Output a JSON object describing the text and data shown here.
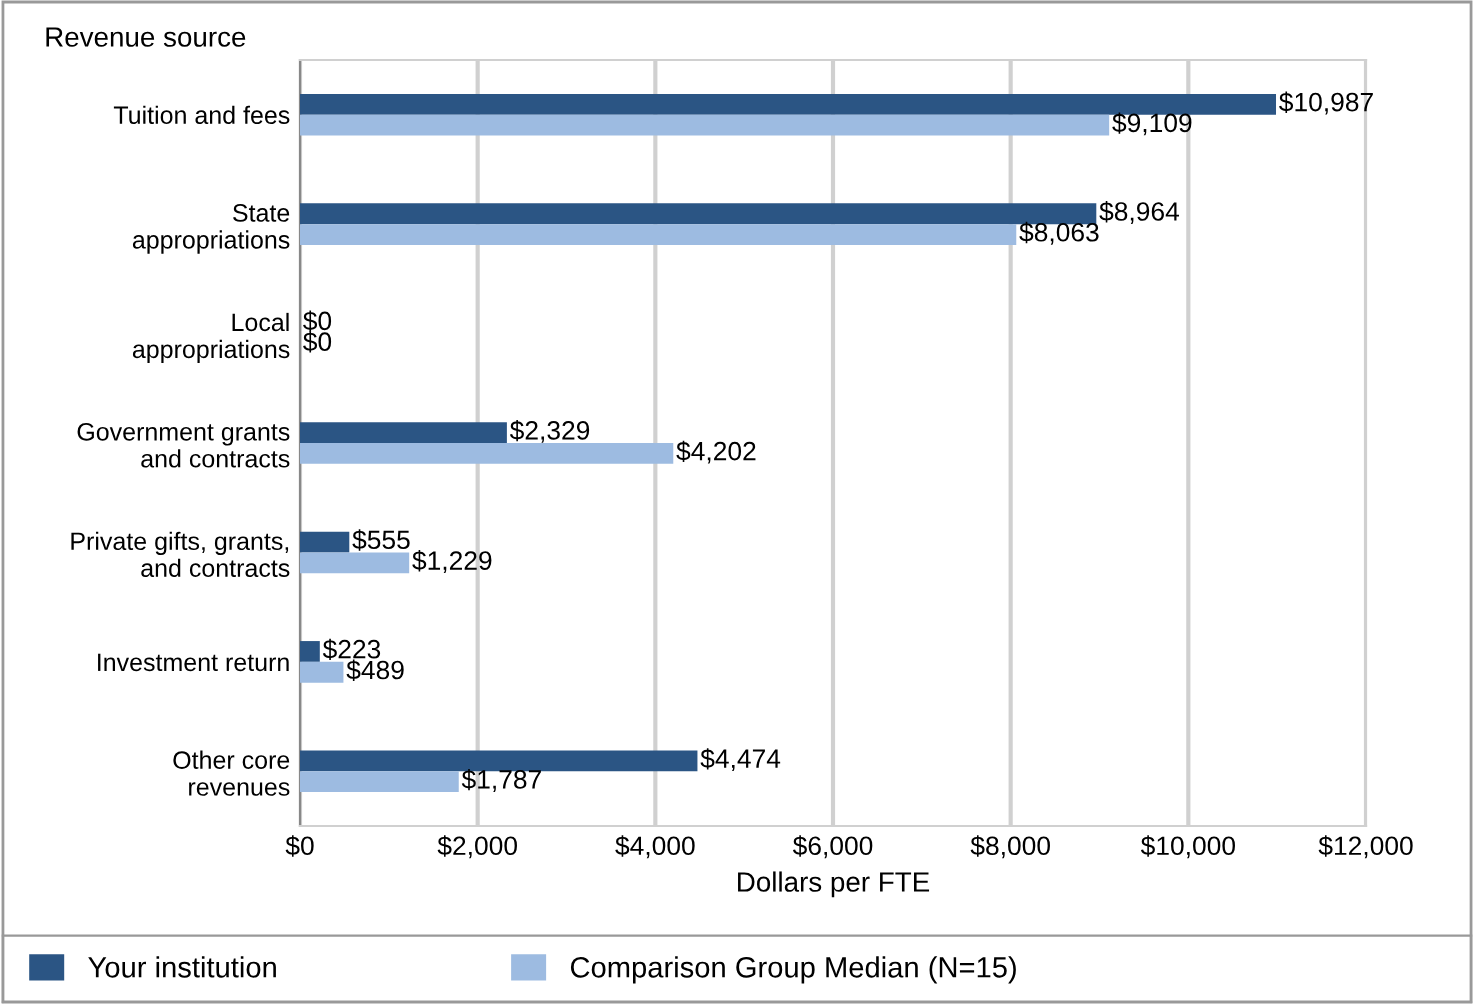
{
  "chart_data": {
    "type": "bar",
    "orientation": "horizontal",
    "ylabel": "Revenue source",
    "xlabel": "Dollars per FTE",
    "categories": [
      "Tuition and fees",
      "State\nappropriations",
      "Local\nappropriations",
      "Government grants\nand contracts",
      "Private gifts, grants,\nand contracts",
      "Investment return",
      "Other core\nrevenues"
    ],
    "series": [
      {
        "name": "Your institution",
        "color": "#2b5584",
        "values": [
          10987,
          8964,
          0,
          2329,
          555,
          223,
          4474
        ],
        "value_labels": [
          "$10,987",
          "$8,964",
          "$0",
          "$2,329",
          "$555",
          "$223",
          "$4,474"
        ]
      },
      {
        "name": "Comparison Group Median (N=15)",
        "color": "#9dbbe1",
        "values": [
          9109,
          8063,
          0,
          4202,
          1229,
          489,
          1787
        ],
        "value_labels": [
          "$9,109",
          "$8,063",
          "$0",
          "$4,202",
          "$1,229",
          "$489",
          "$1,787"
        ]
      }
    ],
    "xlim": [
      0,
      12000
    ],
    "xticks": [
      {
        "value": 0,
        "label": "$0"
      },
      {
        "value": 2000,
        "label": "$2,000"
      },
      {
        "value": 4000,
        "label": "$4,000"
      },
      {
        "value": 6000,
        "label": "$6,000"
      },
      {
        "value": 8000,
        "label": "$8,000"
      },
      {
        "value": 10000,
        "label": "$10,000"
      },
      {
        "value": 12000,
        "label": "$12,000"
      }
    ],
    "grid": "x",
    "legend": "bottom"
  }
}
